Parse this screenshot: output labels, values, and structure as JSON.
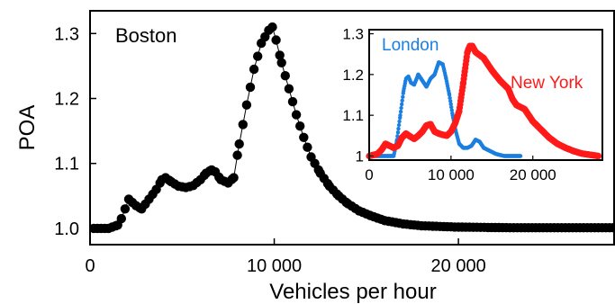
{
  "chart_data": [
    {
      "type": "scatter",
      "title": "Boston",
      "xlabel": "Vehicles per hour",
      "ylabel": "POA",
      "xlim": [
        0,
        28500
      ],
      "ylim": [
        0.975,
        1.335
      ],
      "xticks": [
        0,
        10000,
        20000
      ],
      "xtick_labels": [
        "0",
        "10 000",
        "20 000"
      ],
      "yticks": [
        1.0,
        1.1,
        1.2,
        1.3
      ],
      "ytick_labels": [
        "1.0",
        "1.1",
        "1.2",
        "1.3"
      ],
      "grid": false,
      "legend": "none",
      "color": "#000000",
      "series": [
        {
          "x": [
            0,
            1000,
            1500,
            1700,
            1900,
            2100,
            2300,
            2500,
            2800,
            3200,
            3600,
            3900,
            4100,
            4400,
            4800,
            5200,
            5600,
            6000,
            6300,
            6600,
            6800,
            7100,
            7500,
            7800,
            8100,
            8500,
            8900,
            9300,
            9700,
            9900,
            10100,
            10400,
            10800,
            11200,
            11600,
            12000,
            12500,
            13000,
            13500,
            14000,
            14600,
            15200,
            16000,
            17000,
            18000,
            20000,
            23000,
            28500
          ],
          "y": [
            1.0,
            1.0,
            1.005,
            1.015,
            1.03,
            1.045,
            1.04,
            1.035,
            1.03,
            1.045,
            1.06,
            1.075,
            1.078,
            1.072,
            1.065,
            1.063,
            1.066,
            1.075,
            1.085,
            1.09,
            1.087,
            1.075,
            1.07,
            1.078,
            1.13,
            1.19,
            1.245,
            1.285,
            1.305,
            1.31,
            1.29,
            1.255,
            1.215,
            1.175,
            1.14,
            1.11,
            1.085,
            1.065,
            1.05,
            1.038,
            1.027,
            1.02,
            1.012,
            1.007,
            1.004,
            1.002,
            1.001,
            1.001
          ]
        }
      ]
    },
    {
      "type": "scatter",
      "xlim": [
        0,
        28500
      ],
      "ylim": [
        0.99,
        1.31
      ],
      "xticks": [
        0,
        10000,
        20000
      ],
      "xtick_labels": [
        "0",
        "10 000",
        "20 000"
      ],
      "yticks": [
        1.0,
        1.1,
        1.2,
        1.3
      ],
      "ytick_labels": [
        "1",
        "1.1",
        "1.2",
        "1.3"
      ],
      "grid": false,
      "legend": "none",
      "series": [
        {
          "name": "London",
          "color": "#1a7fe0",
          "x": [
            0,
            3000,
            3400,
            3800,
            4200,
            4500,
            4800,
            5100,
            5500,
            6000,
            6500,
            7000,
            7500,
            8000,
            8500,
            9000,
            9400,
            9800,
            10200,
            10600,
            11000,
            11500,
            12000,
            12500,
            13000,
            13500,
            14000,
            14500,
            15000,
            15500,
            16500,
            17500,
            18500
          ],
          "y": [
            1.0,
            1.0,
            1.04,
            1.1,
            1.16,
            1.19,
            1.195,
            1.18,
            1.175,
            1.2,
            1.185,
            1.17,
            1.19,
            1.2,
            1.23,
            1.225,
            1.19,
            1.15,
            1.1,
            1.06,
            1.03,
            1.02,
            1.02,
            1.025,
            1.04,
            1.035,
            1.02,
            1.015,
            1.01,
            1.005,
            1.0,
            1.0,
            1.0
          ]
        },
        {
          "name": "New York",
          "color": "#ff1a1a",
          "x": [
            0,
            1000,
            1500,
            2000,
            2500,
            3000,
            3500,
            4000,
            4500,
            5000,
            5500,
            6000,
            6500,
            7000,
            7500,
            8000,
            8500,
            9000,
            9500,
            10000,
            10500,
            11000,
            11500,
            12000,
            12300,
            12600,
            13000,
            14000,
            15000,
            16000,
            17000,
            17500,
            18000,
            19000,
            20000,
            21000,
            22000,
            23000,
            24000,
            25000,
            26000,
            27000,
            28000
          ],
          "y": [
            1.0,
            1.005,
            1.015,
            1.03,
            1.025,
            1.02,
            1.025,
            1.045,
            1.055,
            1.048,
            1.042,
            1.05,
            1.06,
            1.075,
            1.078,
            1.06,
            1.055,
            1.052,
            1.05,
            1.06,
            1.08,
            1.11,
            1.18,
            1.255,
            1.27,
            1.27,
            1.255,
            1.24,
            1.21,
            1.185,
            1.165,
            1.14,
            1.125,
            1.115,
            1.085,
            1.065,
            1.045,
            1.03,
            1.02,
            1.012,
            1.006,
            1.003,
            1.0
          ]
        }
      ]
    }
  ]
}
